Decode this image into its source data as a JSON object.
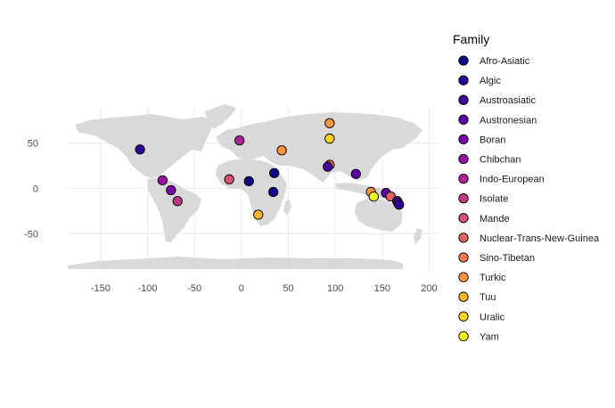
{
  "chart_data": {
    "type": "scatter",
    "title": "",
    "xlabel": "",
    "ylabel": "",
    "xlim": [
      -185,
      210
    ],
    "ylim": [
      -90,
      90
    ],
    "x_ticks": [
      -150,
      -100,
      -50,
      0,
      50,
      100,
      150,
      200
    ],
    "y_ticks": [
      -50,
      0,
      50
    ],
    "grid": true,
    "background": "world-map",
    "legend": {
      "title": "Family",
      "placement": "right",
      "entries": [
        {
          "name": "Afro-Asiatic",
          "color": "#0d0887"
        },
        {
          "name": "Algic",
          "color": "#2c0594"
        },
        {
          "name": "Austroasiatic",
          "color": "#43039e"
        },
        {
          "name": "Austronesian",
          "color": "#5c01a6"
        },
        {
          "name": "Boran",
          "color": "#7a02a8"
        },
        {
          "name": "Chibchan",
          "color": "#9511a1"
        },
        {
          "name": "Indo-European",
          "color": "#ab2494"
        },
        {
          "name": "Isolate",
          "color": "#c03a83"
        },
        {
          "name": "Mande",
          "color": "#d35171"
        },
        {
          "name": "Nuclear-Trans-New-Guinea",
          "color": "#e16462"
        },
        {
          "name": "Sino-Tibetan",
          "color": "#ed7953"
        },
        {
          "name": "Turkic",
          "color": "#f89540"
        },
        {
          "name": "Tuu",
          "color": "#fdb32f"
        },
        {
          "name": "Uralic",
          "color": "#fbd324"
        },
        {
          "name": "Yam",
          "color": "#f0f921"
        }
      ]
    },
    "points": [
      {
        "lon": -108,
        "lat": 43,
        "family": "Algic"
      },
      {
        "lon": -2,
        "lat": 53,
        "family": "Indo-European"
      },
      {
        "lon": -84,
        "lat": 9,
        "family": "Chibchan"
      },
      {
        "lon": -75,
        "lat": -2,
        "family": "Boran"
      },
      {
        "lon": -68,
        "lat": -14,
        "family": "Isolate"
      },
      {
        "lon": -13,
        "lat": 10,
        "family": "Mande"
      },
      {
        "lon": 8,
        "lat": 8,
        "family": "Afro-Asiatic"
      },
      {
        "lon": 35,
        "lat": 17,
        "family": "Afro-Asiatic"
      },
      {
        "lon": 34,
        "lat": -4,
        "family": "Afro-Asiatic"
      },
      {
        "lon": 18,
        "lat": -29,
        "family": "Tuu"
      },
      {
        "lon": 43,
        "lat": 42,
        "family": "Turkic"
      },
      {
        "lon": 94,
        "lat": 72,
        "family": "Turkic"
      },
      {
        "lon": 94,
        "lat": 55,
        "family": "Uralic"
      },
      {
        "lon": 94,
        "lat": 26,
        "family": "Sino-Tibetan"
      },
      {
        "lon": 92,
        "lat": 24,
        "family": "Austroasiatic"
      },
      {
        "lon": 122,
        "lat": 16,
        "family": "Austronesian"
      },
      {
        "lon": 138,
        "lat": -4,
        "family": "Turkic"
      },
      {
        "lon": 141,
        "lat": -9,
        "family": "Yam"
      },
      {
        "lon": 154,
        "lat": -5,
        "family": "Austronesian"
      },
      {
        "lon": 159,
        "lat": -9,
        "family": "Nuclear-Trans-New-Guinea"
      },
      {
        "lon": 166,
        "lat": -14,
        "family": "Austronesian"
      },
      {
        "lon": 167,
        "lat": -16,
        "family": "Austronesian"
      },
      {
        "lon": 168,
        "lat": -18,
        "family": "Algic"
      }
    ]
  }
}
